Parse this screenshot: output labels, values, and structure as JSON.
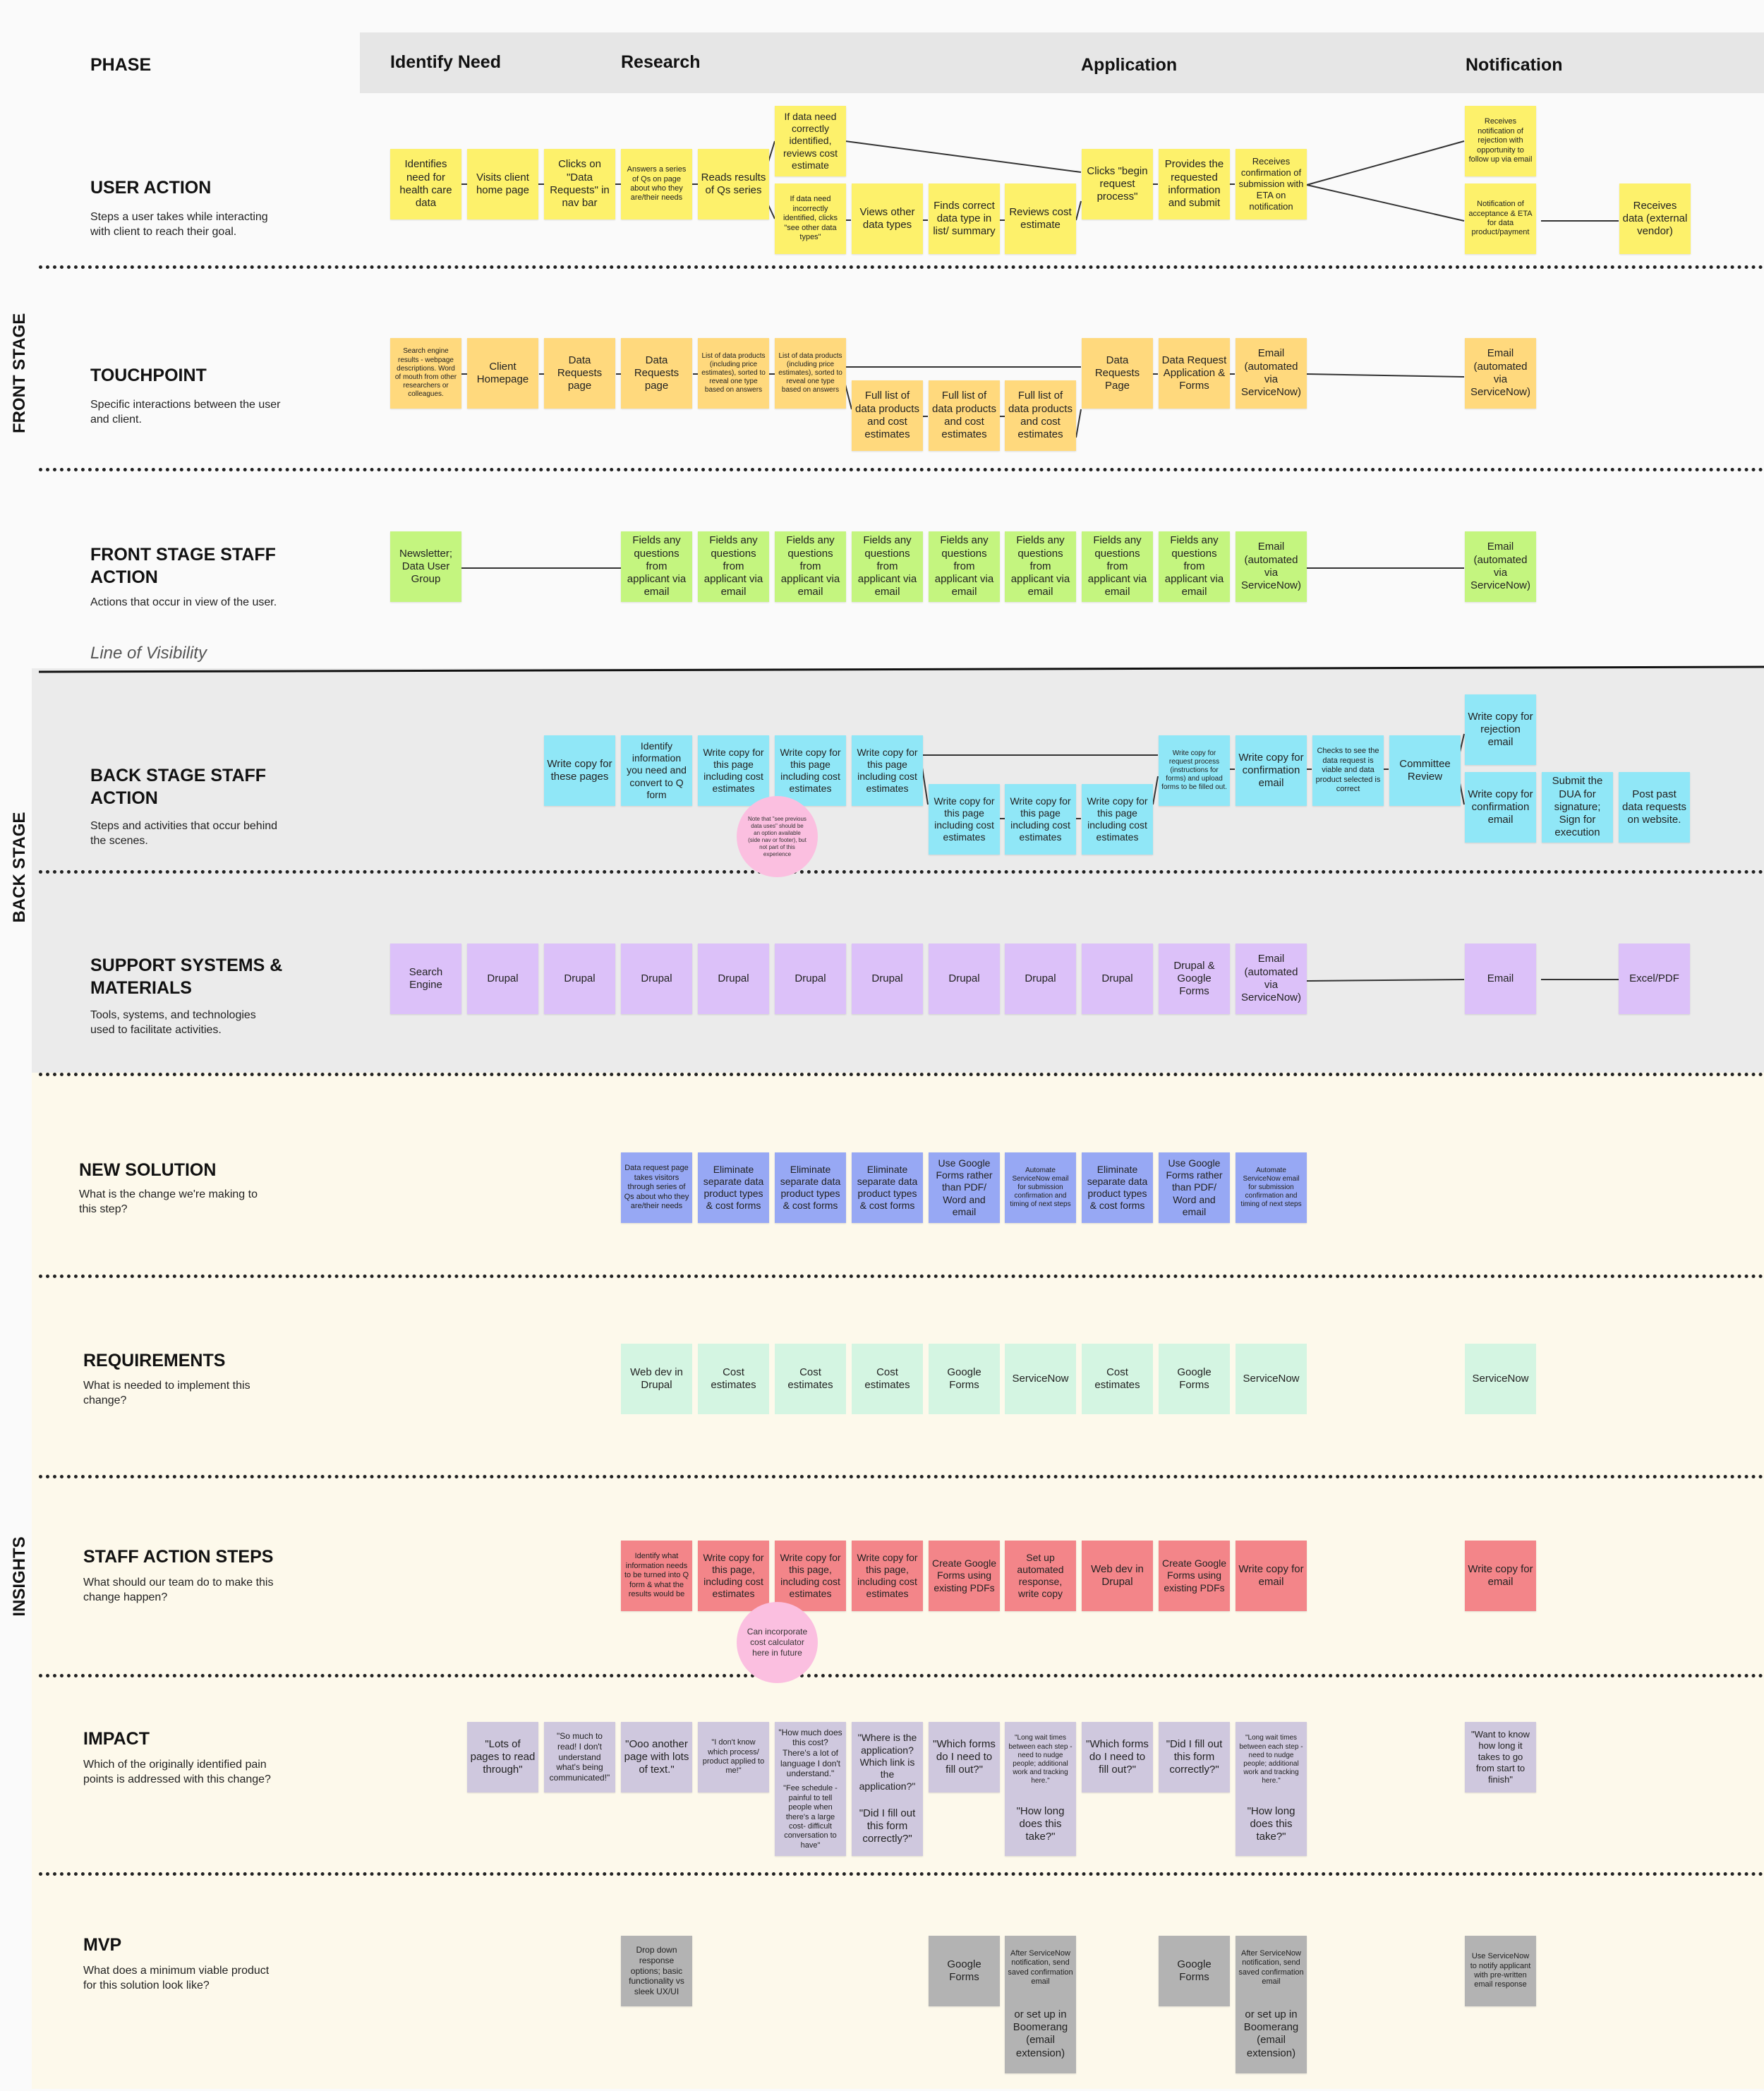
{
  "colors": {
    "yellow": "#fdf16b",
    "orange": "#ffd97d",
    "green": "#c4f57f",
    "cyan": "#90e7f7",
    "purple": "#dcc1f9",
    "blue": "#97a8f4",
    "mint": "#d4f5e2",
    "red": "#f38589",
    "lavender": "#cfc8de",
    "gray": "#b3b3b3",
    "pink": "#fbbfe0",
    "backstage_bg": "#ebebeb",
    "insights_bg": "#fdf9eb"
  },
  "stages": {
    "front": "FRONT STAGE",
    "back": "BACK STAGE",
    "insights": "INSIGHTS"
  },
  "phases": {
    "label": "PHASE",
    "identify": "Identify Need",
    "research": "Research",
    "application": "Application",
    "notification": "Notification"
  },
  "rows": {
    "user_action": {
      "title": "USER ACTION",
      "desc": "Steps a user takes while interacting with client to reach their goal."
    },
    "touchpoint": {
      "title": "TOUCHPOINT",
      "desc": "Specific interactions between the user and client."
    },
    "front_staff": {
      "title": "FRONT STAGE STAFF ACTION",
      "desc": "Actions that occur in view of the user."
    },
    "line_of_visibility": "Line of Visibility",
    "back_staff": {
      "title": "BACK STAGE STAFF ACTION",
      "desc": "Steps and activities that occur behind the scenes."
    },
    "support": {
      "title": "SUPPORT SYSTEMS & MATERIALS",
      "desc": "Tools, systems, and technologies used to facilitate activities."
    },
    "new_solution": {
      "title": "NEW SOLUTION",
      "desc": "What is the change we're making to this step?"
    },
    "requirements": {
      "title": "REQUIREMENTS",
      "desc": "What is needed to implement this change?"
    },
    "staff_steps": {
      "title": "STAFF ACTION STEPS",
      "desc": "What should our team do to make this change happen?"
    },
    "impact": {
      "title": "IMPACT",
      "desc": "Which of the originally identified pain points is addressed with this change?"
    },
    "mvp": {
      "title": "MVP",
      "desc": "What does a minimum viable product for this solution look like?"
    }
  },
  "notes": {
    "ua_identifies": "Identifies need for health care data",
    "ua_visits": "Visits client home page",
    "ua_clicks_data": "Clicks on \"Data Requests\" in nav bar",
    "ua_answers": "Answers a series of Qs on page about who they are/their needs",
    "ua_reads": "Reads results of Qs series",
    "ua_correct": "If data need correctly identified, reviews cost estimate",
    "ua_incorrect": "If data need incorrectly identified, clicks \"see other data types\"",
    "ua_views_other": "Views other data types",
    "ua_finds": "Finds correct data type in list/ summary",
    "ua_reviews": "Reviews cost estimate",
    "ua_begin": "Clicks \"begin request process\"",
    "ua_provides": "Provides the requested information and submit",
    "ua_receives_conf": "Receives confirmation of submission with ETA on notification",
    "ua_rejection": "Receives notification of rejection with opportunity to follow up via email",
    "ua_acceptance": "Notification of acceptance & ETA for data product/payment",
    "ua_receives_data": "Receives data (external vendor)",
    "tp_search": "Search engine results - webpage descriptions. Word of mouth from other researchers or colleagues.",
    "tp_client": "Client Homepage",
    "tp_dr1": "Data Requests page",
    "tp_dr2": "Data Requests page",
    "tp_list1": "List of data products (including price estimates), sorted to reveal one type based on answers",
    "tp_list2": "List of data products (including price estimates), sorted to reveal one type based on answers",
    "tp_full1": "Full list of data products and cost estimates",
    "tp_full2": "Full list of data products and cost estimates",
    "tp_full3": "Full list of data products and cost estimates",
    "tp_drp": "Data Requests Page",
    "tp_drapp": "Data Request Application & Forms",
    "tp_email1": "Email (automated via ServiceNow)",
    "tp_email2": "Email (automated via ServiceNow)",
    "fs_newsletter": "Newsletter; Data User Group",
    "fs_fields": "Fields any questions from applicant via email",
    "fs_email1": "Email (automated via ServiceNow)",
    "fs_email2": "Email (automated via ServiceNow)",
    "bs_write_these": "Write copy for these pages",
    "bs_identify": "Identify information you need and convert to Q form",
    "bs_write_page": "Write copy for this page including cost estimates",
    "bs_write_process": "Write copy for request process (instructions for forms) and upload forms to be filled out.",
    "bs_write_conf": "Write copy for confirmation email",
    "bs_checks": "Checks to see the data request is viable and data product selected is correct",
    "bs_committee": "Committee Review",
    "bs_write_rejection": "Write copy for rejection email",
    "bs_write_conf2": "Write copy for confirmation email",
    "bs_submit_dua": "Submit the DUA for signature; Sign for execution",
    "bs_post": "Post past data requests on website.",
    "bs_note_circle": "Note that \"see previous data uses\" should be an option available (side nav or footer), but not part of this experience",
    "sp_search": "Search Engine",
    "sp_drupal": "Drupal",
    "sp_drupal_google": "Drupal & Google Forms",
    "sp_email_auto": "Email (automated via ServiceNow)",
    "sp_email": "Email",
    "sp_excel": "Excel/PDF",
    "ns_dr": "Data request page takes visitors through series of Qs about who they are/their needs",
    "ns_eliminate": "Eliminate separate data product types & cost forms",
    "ns_google": "Use Google Forms rather than PDF/ Word and email",
    "ns_automate": "Automate ServiceNow email for submission confirmation and timing of next steps",
    "rq_webdev": "Web dev in Drupal",
    "rq_cost": "Cost estimates",
    "rq_google": "Google Forms",
    "rq_servicenow": "ServiceNow",
    "st_identify": "Identify what information needs to be turned into Q form & what the results would be",
    "st_write_page": "Write copy for this page, including cost estimates",
    "st_create_google": "Create Google Forms using existing PDFs",
    "st_setup": "Set up automated response, write copy",
    "st_webdev": "Web dev in Drupal",
    "st_write_email": "Write copy for email",
    "st_circle": "Can incorporate cost calculator here in future",
    "im_lots": "\"Lots of pages to read through\"",
    "im_so_much": "\"So much to read! I don't understand what's being communicated!\"",
    "im_ooo": "\"Ooo another page with lots of text.\"",
    "im_dont_know": "\"I don't know which process/ product applied to me!\"",
    "im_how_much": "\"How much does this cost? There's a lot of language I don't understand.\"",
    "im_fee": "\"Fee schedule - painful to tell people when there's a large cost- difficult conversation to have\"",
    "im_where": "\"Where is the application? Which link is the application?\"",
    "im_did_fill": "\"Did I fill out this form correctly?\"",
    "im_which_forms": "\"Which forms do I need to fill out?\"",
    "im_long_wait": "\"Long wait times between each step - need to nudge people; additional work and tracking here.\"",
    "im_how_long": "\"How long does this take?\"",
    "im_want_know": "\"Want to know how long it takes to go from start to finish\"",
    "mvp_dropdown": "Drop down response options; basic functionality vs sleek UX/UI",
    "mvp_google": "Google Forms",
    "mvp_after": "After ServiceNow notification, send saved confirmation email",
    "mvp_boomerang": "or set up in Boomerang (email extension)",
    "mvp_servicenow": "Use ServiceNow to notify applicant with pre-written email response"
  }
}
